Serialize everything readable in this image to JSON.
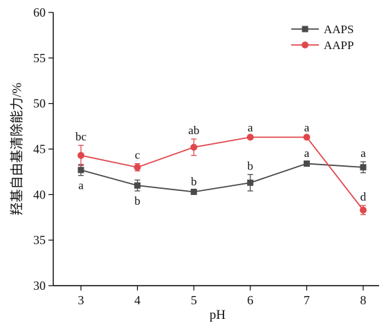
{
  "chart_data": {
    "type": "line",
    "title": "",
    "xlabel": "pH",
    "ylabel": "羟基自由基清除能力/%",
    "x": [
      3,
      4,
      5,
      6,
      7,
      8
    ],
    "xlim": [
      2.5,
      8.2
    ],
    "ylim": [
      30,
      60
    ],
    "yticks": [
      30,
      35,
      40,
      45,
      50,
      55,
      60
    ],
    "grid": false,
    "legend_position": "top-right",
    "series": [
      {
        "name": "AAPS",
        "color": "#4a4a4a",
        "marker": "square",
        "values": [
          42.7,
          41.0,
          40.3,
          41.3,
          43.4,
          43.0
        ],
        "errors": [
          0.6,
          0.6,
          0.2,
          0.9,
          0.2,
          0.6
        ],
        "labels": [
          "a",
          "b",
          "b",
          "b",
          "a",
          "a"
        ],
        "label_positions": [
          "below",
          "below",
          "above",
          "above",
          "above",
          "above"
        ]
      },
      {
        "name": "AAPP",
        "color": "#e0474c",
        "marker": "circle",
        "values": [
          44.3,
          43.0,
          45.2,
          46.3,
          46.3,
          38.3
        ],
        "errors": [
          1.1,
          0.4,
          0.9,
          0.1,
          0.1,
          0.5
        ],
        "labels": [
          "bc",
          "c",
          "ab",
          "a",
          "a",
          "d"
        ],
        "label_positions": [
          "above",
          "above",
          "above",
          "above",
          "above",
          "above"
        ]
      }
    ]
  }
}
